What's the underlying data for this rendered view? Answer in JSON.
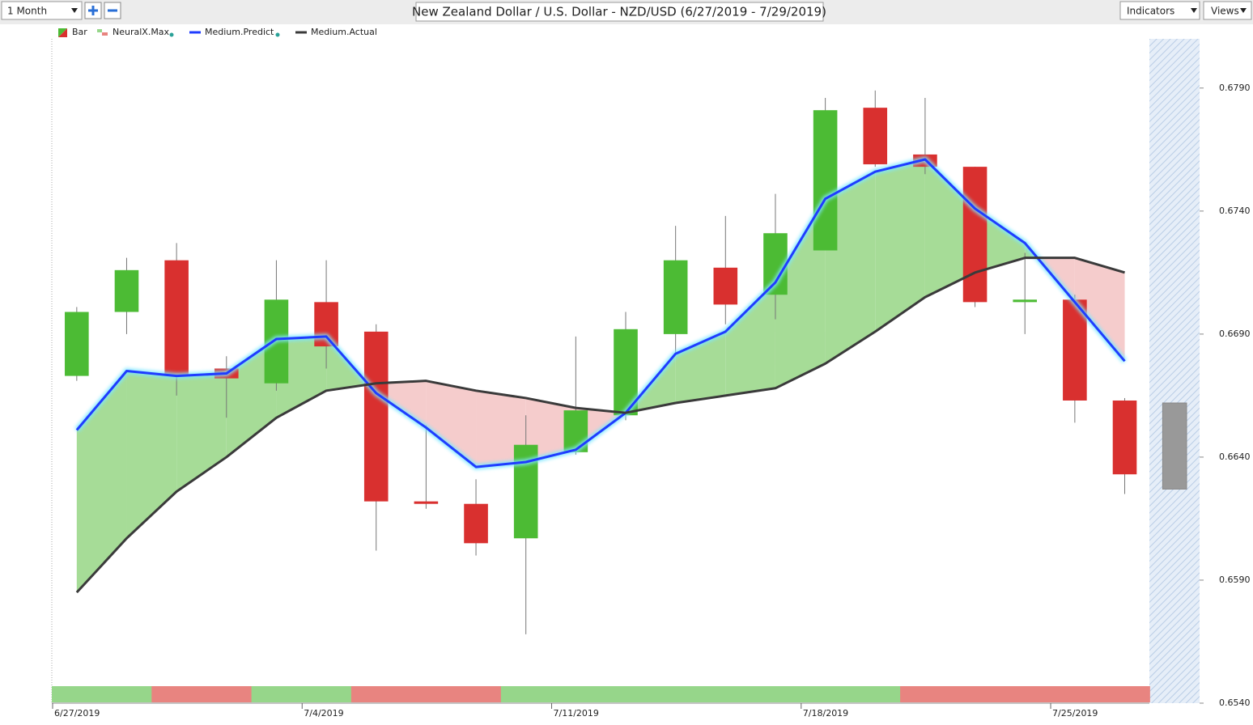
{
  "toolbar": {
    "period": "1 Month",
    "indicators": "Indicators",
    "views": "Views"
  },
  "chart_data": {
    "type": "candlestick",
    "title": "New Zealand Dollar / U.S. Dollar - NZD/USD (6/27/2019 - 7/29/2019)",
    "categories": [
      "6/27/2019",
      null,
      null,
      null,
      null,
      "7/4/2019",
      null,
      null,
      null,
      null,
      "7/11/2019",
      null,
      null,
      null,
      null,
      "7/18/2019",
      null,
      null,
      null,
      null,
      "7/25/2019",
      null,
      null
    ],
    "candles": {
      "name": "Bar",
      "up_color": "#4cbb34",
      "down_color": "#d9302f",
      "forecast_color": "#999999",
      "open": [
        0.6673,
        0.6699,
        0.672,
        0.6676,
        0.667,
        0.6703,
        0.6691,
        0.6622,
        0.6621,
        0.6607,
        0.6642,
        0.6657,
        0.669,
        0.6717,
        0.6706,
        0.6724,
        0.6782,
        0.6763,
        0.6758,
        0.6703,
        0.6704,
        0.6663,
        0.6662
      ],
      "high": [
        0.6701,
        0.6721,
        0.6727,
        0.6681,
        0.672,
        0.672,
        0.6694,
        0.6653,
        0.6631,
        0.6657,
        0.6689,
        0.6699,
        0.6734,
        0.6738,
        0.6747,
        0.6786,
        0.6789,
        0.6786,
        0.6758,
        0.6723,
        0.6706,
        0.6664,
        null
      ],
      "low": [
        0.6671,
        0.669,
        0.6665,
        0.6656,
        0.6667,
        0.6676,
        0.6602,
        0.6619,
        0.66,
        0.6568,
        0.6641,
        0.6655,
        0.6682,
        0.6694,
        0.6696,
        0.6724,
        0.6758,
        0.6755,
        0.6701,
        0.669,
        0.6654,
        0.6625,
        null
      ],
      "close": [
        0.6699,
        0.6716,
        0.6673,
        0.6672,
        0.6704,
        0.6685,
        0.6622,
        0.6621,
        0.6605,
        0.6645,
        0.6659,
        0.6692,
        0.672,
        0.6702,
        0.6731,
        0.6781,
        0.6759,
        0.6758,
        0.6703,
        0.6704,
        0.6663,
        0.6633,
        0.6627
      ]
    },
    "signals": {
      "name": "NeuralX.Max",
      "up_color": "#96d68a",
      "down_color": "#e88480",
      "values": [
        1,
        1,
        -1,
        -1,
        1,
        1,
        -1,
        -1,
        -1,
        1,
        1,
        1,
        1,
        1,
        1,
        1,
        1,
        -1,
        -1,
        -1,
        -1,
        -1,
        null
      ]
    },
    "series": [
      {
        "name": "Medium.Predict",
        "color": "#1f3cff",
        "values": [
          0.6651,
          0.6675,
          0.6673,
          0.6674,
          0.6688,
          0.6689,
          0.6666,
          0.6652,
          0.6636,
          0.6638,
          0.6643,
          0.6658,
          0.6682,
          0.6691,
          0.6711,
          0.6745,
          0.6756,
          0.6761,
          0.6741,
          0.6727,
          0.6703,
          0.6679,
          null
        ]
      },
      {
        "name": "Medium.Actual",
        "color": "#3a3a3a",
        "values": [
          0.6585,
          0.6607,
          0.6626,
          0.664,
          0.6656,
          0.6667,
          0.667,
          0.6671,
          0.6667,
          0.6664,
          0.666,
          0.6658,
          0.6662,
          0.6665,
          0.6668,
          0.6678,
          0.6691,
          0.6705,
          0.6715,
          0.6721,
          0.6721,
          0.6715,
          null
        ]
      }
    ],
    "fill_above_color": "#a6dc97",
    "fill_below_color": "#f5cccc",
    "ylim": [
      0.654,
      0.681
    ],
    "yticks": [
      {
        "value": 0.654,
        "label": "0.6540"
      },
      {
        "value": 0.659,
        "label": "0.6590"
      },
      {
        "value": 0.664,
        "label": "0.6640"
      },
      {
        "value": 0.669,
        "label": "0.6690"
      },
      {
        "value": 0.674,
        "label": "0.6740"
      },
      {
        "value": 0.679,
        "label": "0.6790"
      }
    ]
  }
}
